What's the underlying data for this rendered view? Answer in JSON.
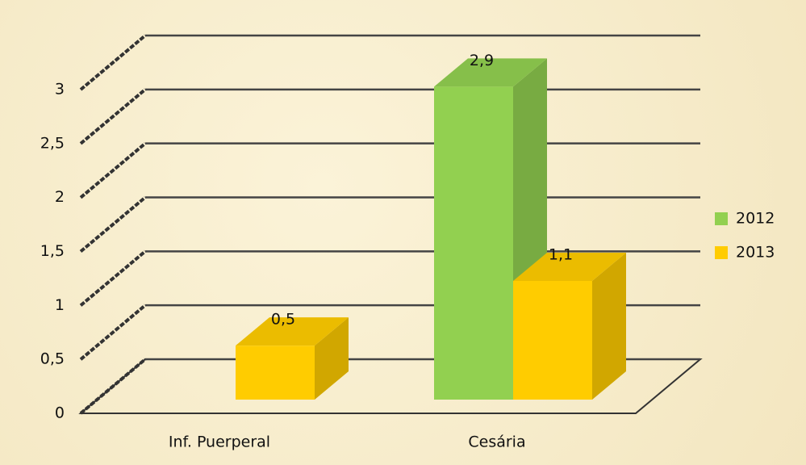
{
  "chart_data": {
    "type": "bar3d",
    "categories": [
      "Inf. Puerperal",
      "Cesária"
    ],
    "series": [
      {
        "name": "2012",
        "color": "#92d050",
        "values": [
          null,
          2.9
        ],
        "value_labels": [
          null,
          "2,9"
        ]
      },
      {
        "name": "2013",
        "color": "#ffcc00",
        "values": [
          0.5,
          1.1
        ],
        "value_labels": [
          "0,5",
          "1,1"
        ]
      }
    ],
    "ylim": [
      0,
      3
    ],
    "yticks": [
      0,
      {
        "value": 0.5,
        "label": "0,5"
      },
      1,
      {
        "value": 1.5,
        "label": "1,5"
      },
      2,
      {
        "value": 2.5,
        "label": "2,5"
      },
      3
    ],
    "grid": true,
    "legend": "right"
  }
}
